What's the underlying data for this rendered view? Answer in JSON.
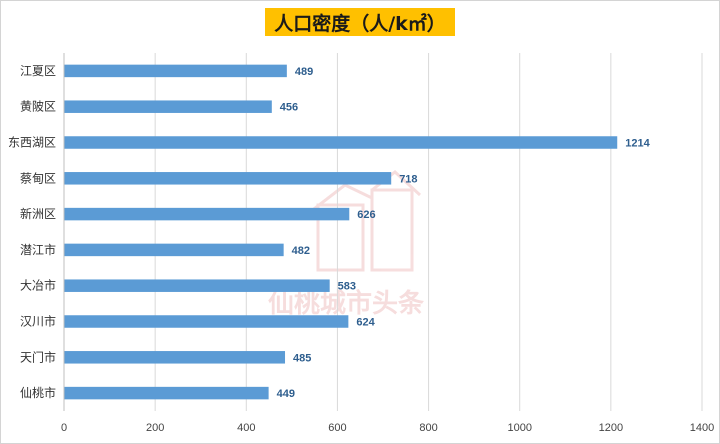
{
  "chart_data": {
    "type": "bar",
    "orientation": "horizontal",
    "title": "人口密度（人/k㎡）",
    "categories": [
      "江夏区",
      "黄陂区",
      "东西湖区",
      "蔡甸区",
      "新洲区",
      "潜江市",
      "大冶市",
      "汉川市",
      "天门市",
      "仙桃市"
    ],
    "values": [
      489,
      456,
      1214,
      718,
      626,
      482,
      583,
      624,
      485,
      449
    ],
    "xlim": [
      0,
      1400
    ],
    "xticks": [
      0,
      200,
      400,
      600,
      800,
      1000,
      1200,
      1400
    ],
    "grid": "vertical",
    "bar_color": "#5b9bd5",
    "title_bg_color": "#ffc000",
    "data_label_color": "#2e5e8e"
  },
  "watermark": {
    "text": "仙桃城市头条"
  }
}
